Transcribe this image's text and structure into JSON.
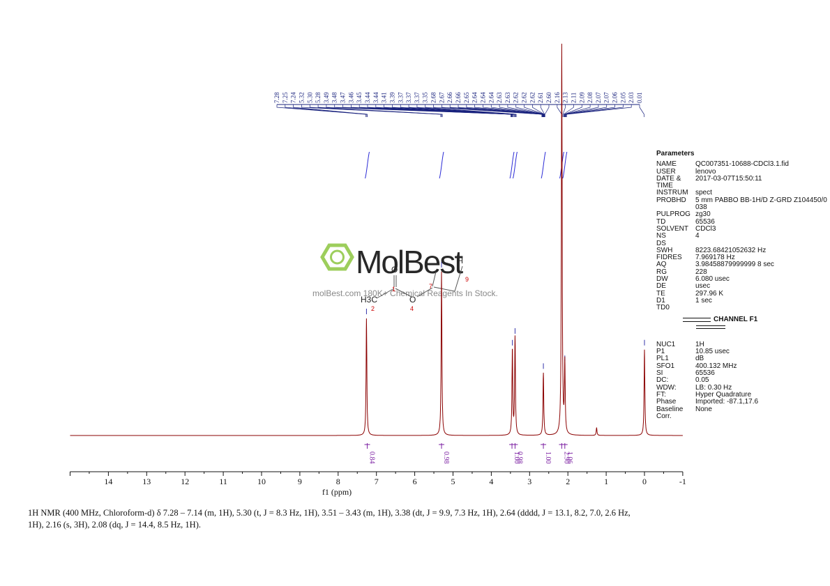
{
  "chart_data": {
    "type": "line",
    "title": "",
    "xlabel": "f1 (ppm)",
    "ylabel": "",
    "xlim": [
      15,
      -1
    ],
    "x_ticks": [
      "14",
      "13",
      "12",
      "11",
      "10",
      "9",
      "8",
      "7",
      "6",
      "5",
      "4",
      "3",
      "2",
      "1",
      "0",
      "-1"
    ],
    "grid": false,
    "series_color": "#8b0000",
    "peaks": [
      {
        "ppm": 7.26,
        "height": 0.3
      },
      {
        "ppm": 5.3,
        "height": 0.42
      },
      {
        "ppm": 3.45,
        "height": 0.22
      },
      {
        "ppm": 3.38,
        "height": 0.25
      },
      {
        "ppm": 2.64,
        "height": 0.16
      },
      {
        "ppm": 2.16,
        "height": 1.0
      },
      {
        "ppm": 2.08,
        "height": 0.18
      },
      {
        "ppm": 1.25,
        "height": 0.02
      },
      {
        "ppm": 0.0,
        "height": 0.22
      }
    ],
    "peak_labels": [
      "7.28",
      "7.25",
      "7.24",
      "5.32",
      "5.30",
      "5.28",
      "3.49",
      "3.48",
      "3.47",
      "3.46",
      "3.45",
      "3.44",
      "3.44",
      "3.41",
      "3.39",
      "3.37",
      "3.37",
      "3.37",
      "3.35",
      "2.68",
      "2.67",
      "2.66",
      "2.66",
      "2.65",
      "2.64",
      "2.64",
      "2.64",
      "2.63",
      "2.63",
      "2.62",
      "2.62",
      "2.62",
      "2.61",
      "2.60",
      "2.16",
      "2.13",
      "2.11",
      "2.09",
      "2.08",
      "2.07",
      "2.07",
      "2.06",
      "2.05",
      "2.03",
      "0.01"
    ],
    "integrals": [
      {
        "ppm": 7.24,
        "value": "0.84"
      },
      {
        "ppm": 5.3,
        "value": "0.98"
      },
      {
        "ppm": 3.46,
        "value": "1.00"
      },
      {
        "ppm": 3.38,
        "value": "0.98"
      },
      {
        "ppm": 2.64,
        "value": "1.00"
      },
      {
        "ppm": 2.16,
        "value": "2.90"
      },
      {
        "ppm": 2.08,
        "value": "1.06"
      }
    ]
  },
  "structure_atom_labels": [
    "O",
    "1",
    "H3C",
    "2",
    "O",
    "4",
    "7",
    "H",
    "9"
  ],
  "watermark": {
    "brand": "MolBest",
    "tagline": "molBest.com 180K+ Chemical Reagents In Stock."
  },
  "parameters": {
    "title": "Parameters",
    "rows": [
      {
        "k": "NAME",
        "v": "QC007351-10688-CDCl3.1.fid"
      },
      {
        "k": "USER",
        "v": "lenovo"
      },
      {
        "k": "DATE & TIME",
        "v": "2017-03-07T15:50:11"
      },
      {
        "k": "INSTRUM",
        "v": "spect"
      },
      {
        "k": "PROBHD",
        "v": "5 mm PABBO BB-1H/D Z-GRD Z104450/0038"
      },
      {
        "k": "PULPROG",
        "v": "zg30"
      },
      {
        "k": "TD",
        "v": "65536"
      },
      {
        "k": "SOLVENT",
        "v": "CDCl3"
      },
      {
        "k": "NS",
        "v": "4"
      },
      {
        "k": "DS",
        "v": ""
      },
      {
        "k": "SWH",
        "v": "8223.68421052632 Hz"
      },
      {
        "k": "FIDRES",
        "v": "7.969178 Hz"
      },
      {
        "k": "AQ",
        "v": "3.98458879999999 8 sec"
      },
      {
        "k": "RG",
        "v": "228"
      },
      {
        "k": "DW",
        "v": "6.080 usec"
      },
      {
        "k": "DE",
        "v": "usec"
      },
      {
        "k": "TE",
        "v": "297.96 K"
      },
      {
        "k": "D1",
        "v": "1 sec"
      },
      {
        "k": "TD0",
        "v": ""
      }
    ],
    "channel_title": "CHANNEL F1",
    "channel_rows": [
      {
        "k": "NUC1",
        "v": "1H"
      },
      {
        "k": "P1",
        "v": "10.85 usec"
      },
      {
        "k": "PL1",
        "v": "dB"
      },
      {
        "k": "SFO1",
        "v": "400.132 MHz"
      },
      {
        "k": "SI",
        "v": "65536"
      },
      {
        "k": "DC:",
        "v": "0.05"
      },
      {
        "k": "WDW:",
        "v": "LB: 0.30 Hz"
      },
      {
        "k": "FT:",
        "v": "Hyper Quadrature"
      },
      {
        "k": "Phase",
        "v": "Imported: -87.1,17.6"
      },
      {
        "k": "Baseline Corr.",
        "v": "None"
      }
    ]
  },
  "caption": "1H NMR (400 MHz, Chloroform-d) δ 7.28 – 7.14 (m, 1H), 5.30 (t, J = 8.3 Hz, 1H), 3.51 – 3.43 (m, 1H), 3.38 (dt, J = 9.9, 7.3 Hz, 1H), 2.64 (dddd, J = 13.1, 8.2, 7.0, 2.6 Hz, 1H), 2.16 (s, 3H), 2.08 (dq, J = 14.4, 8.5 Hz, 1H)."
}
